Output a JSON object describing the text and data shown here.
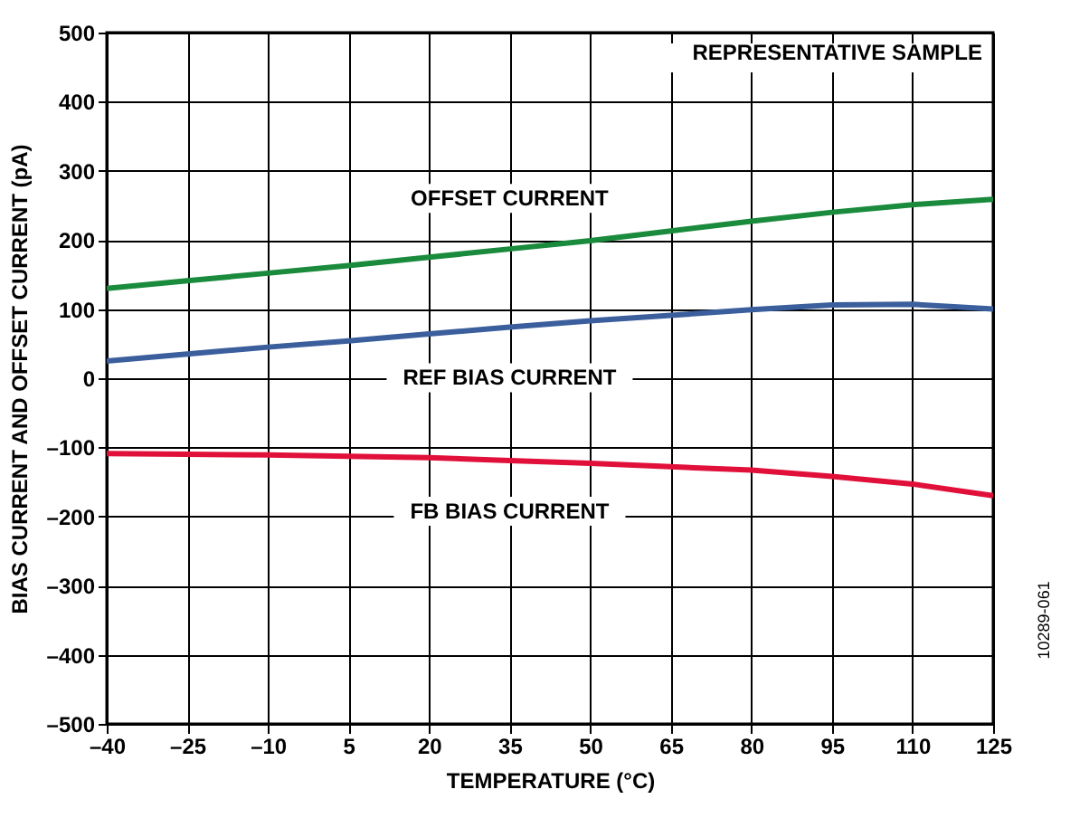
{
  "chart_data": {
    "type": "line",
    "xlabel": "TEMPERATURE (°C)",
    "ylabel": "BIAS CURRENT AND OFFSET CURRENT (pA)",
    "x": [
      -40,
      -25,
      -10,
      5,
      20,
      35,
      50,
      65,
      80,
      95,
      110,
      125
    ],
    "series": [
      {
        "name": "OFFSET CURRENT",
        "color": "#1a8a3c",
        "values": [
          130,
          141,
          152,
          163,
          175,
          187,
          199,
          213,
          227,
          240,
          251,
          259
        ]
      },
      {
        "name": "REF BIAS CURRENT",
        "color": "#3b5e9c",
        "values": [
          25,
          35,
          45,
          54,
          64,
          74,
          83,
          91,
          99,
          106,
          107,
          100
        ]
      },
      {
        "name": "FB BIAS CURRENT",
        "color": "#e0103a",
        "values": [
          -109,
          -110,
          -111,
          -113,
          -115,
          -119,
          -123,
          -128,
          -133,
          -142,
          -153,
          -170
        ]
      }
    ],
    "xlim": [
      -40,
      125
    ],
    "xticks": [
      {
        "value": -40,
        "label": "–40"
      },
      {
        "value": -25,
        "label": "–25"
      },
      {
        "value": -10,
        "label": "–10"
      },
      5,
      20,
      35,
      50,
      65,
      80,
      95,
      110,
      125
    ],
    "ylim": [
      -500,
      500
    ],
    "yticks": [
      {
        "value": -500,
        "label": "–500"
      },
      {
        "value": -400,
        "label": "–400"
      },
      {
        "value": -300,
        "label": "–300"
      },
      {
        "value": -200,
        "label": "–200"
      },
      {
        "value": -100,
        "label": "–100"
      },
      0,
      100,
      200,
      300,
      400,
      500
    ],
    "grid": true,
    "legend": false,
    "annotations": [
      "REPRESENTATIVE SAMPLE",
      "10289-061"
    ]
  }
}
